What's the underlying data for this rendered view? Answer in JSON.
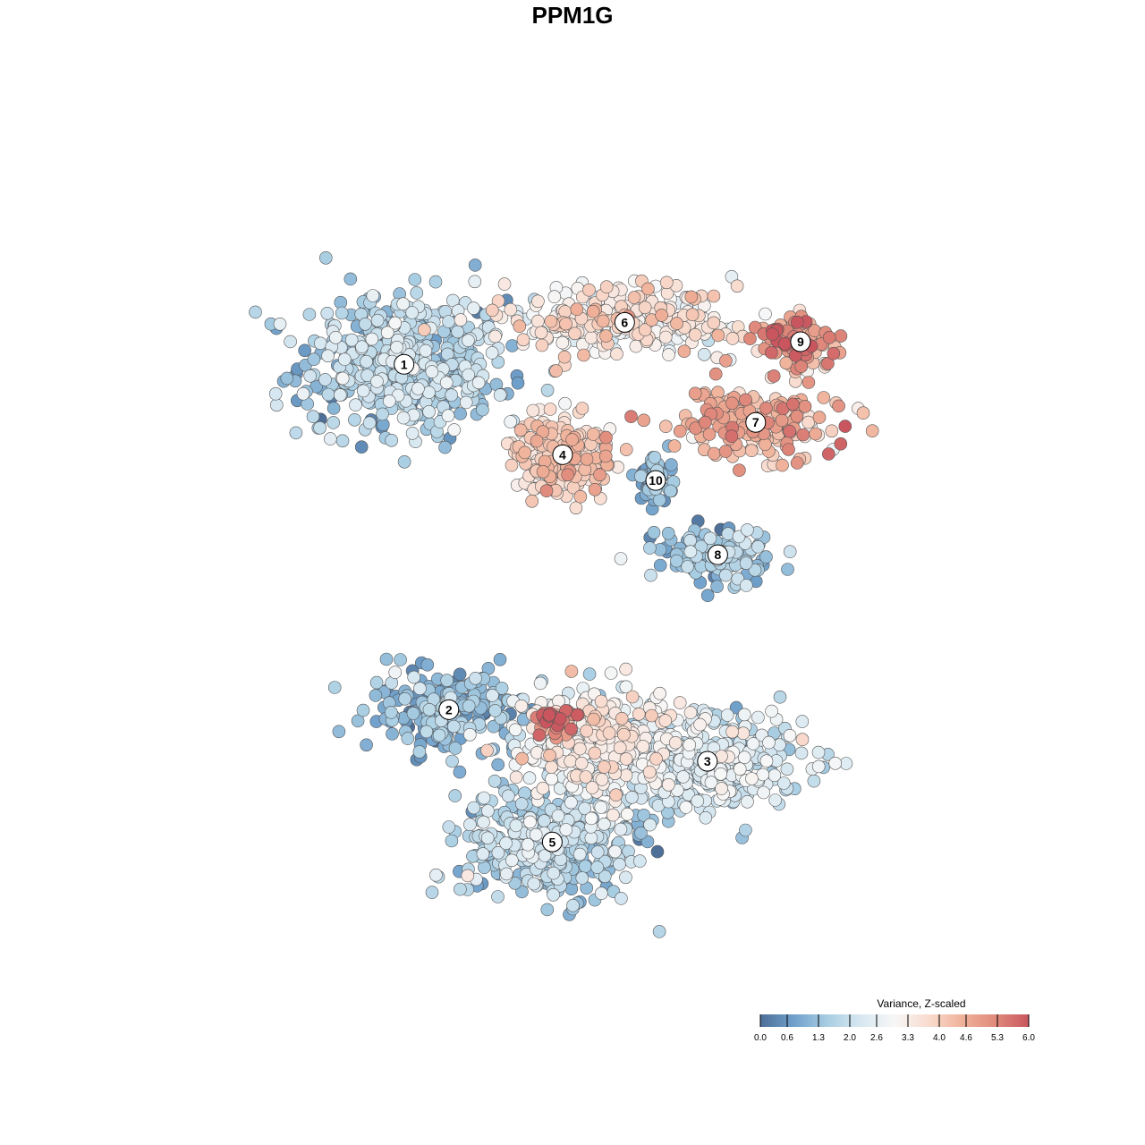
{
  "chart_data": {
    "type": "scatter",
    "title": "PPM1G",
    "xlabel": "",
    "ylabel": "",
    "grid": false,
    "axes_visible": false,
    "legend": {
      "title": "Variance, Z-scaled",
      "placement": "bottom-right",
      "ticks": [
        "0.0",
        "0.6",
        "1.3",
        "2.0",
        "2.6",
        "3.3",
        "4.0",
        "4.6",
        "5.3",
        "6.0"
      ],
      "range": [
        0.0,
        6.0
      ],
      "colors": [
        "#4d6f98",
        "#6fa0cb",
        "#a9cee3",
        "#d8e8f1",
        "#f7f7f7",
        "#f9dccf",
        "#f0b29a",
        "#e08a7c",
        "#c9565f"
      ]
    },
    "clusters": [
      {
        "id": "1",
        "label": "1",
        "center": [
          -5.6,
          6.2
        ],
        "spread": [
          1.5,
          1.1
        ],
        "n": 520,
        "mean": 1.6,
        "sd": 0.55
      },
      {
        "id": "2",
        "label": "2",
        "center": [
          -4.3,
          -4.5
        ],
        "spread": [
          1.3,
          0.7
        ],
        "n": 200,
        "mean": 1.1,
        "sd": 0.5
      },
      {
        "id": "3",
        "label": "3",
        "center": [
          3.2,
          -6.1
        ],
        "spread": [
          1.4,
          0.8
        ],
        "n": 360,
        "mean": 2.2,
        "sd": 0.5
      },
      {
        "id": "4",
        "label": "4",
        "center": [
          -1.0,
          3.4
        ],
        "spread": [
          0.75,
          0.55
        ],
        "n": 220,
        "mean": 3.8,
        "sd": 0.5
      },
      {
        "id": "5",
        "label": "5",
        "center": [
          -1.3,
          -8.6
        ],
        "spread": [
          1.3,
          0.9
        ],
        "n": 420,
        "mean": 1.6,
        "sd": 0.5
      },
      {
        "id": "6",
        "label": "6",
        "center": [
          0.8,
          7.5
        ],
        "spread": [
          1.7,
          0.5
        ],
        "n": 300,
        "mean": 3.3,
        "sd": 0.6
      },
      {
        "id": "7",
        "label": "7",
        "center": [
          4.6,
          4.4
        ],
        "spread": [
          1.3,
          0.5
        ],
        "n": 180,
        "mean": 4.4,
        "sd": 0.6
      },
      {
        "id": "8",
        "label": "8",
        "center": [
          3.5,
          0.3
        ],
        "spread": [
          0.8,
          0.4
        ],
        "n": 140,
        "mean": 1.3,
        "sd": 0.55
      },
      {
        "id": "9",
        "label": "9",
        "center": [
          5.9,
          6.9
        ],
        "spread": [
          0.6,
          0.4
        ],
        "n": 110,
        "mean": 4.6,
        "sd": 0.8
      },
      {
        "id": "10",
        "label": "10",
        "center": [
          1.7,
          2.6
        ],
        "spread": [
          0.25,
          0.35
        ],
        "n": 60,
        "mean": 1.0,
        "sd": 0.35
      },
      {
        "id": "2-hotspot",
        "label": "",
        "center": [
          -1.2,
          -4.8
        ],
        "spread": [
          0.35,
          0.25
        ],
        "n": 40,
        "mean": 5.4,
        "sd": 0.5
      },
      {
        "id": "bridge",
        "label": "",
        "center": [
          0.0,
          -5.5
        ],
        "spread": [
          1.2,
          0.9
        ],
        "n": 350,
        "mean": 2.9,
        "sd": 0.55
      }
    ],
    "xlim": [
      -12,
      12
    ],
    "ylim": [
      -13,
      12.5
    ]
  }
}
